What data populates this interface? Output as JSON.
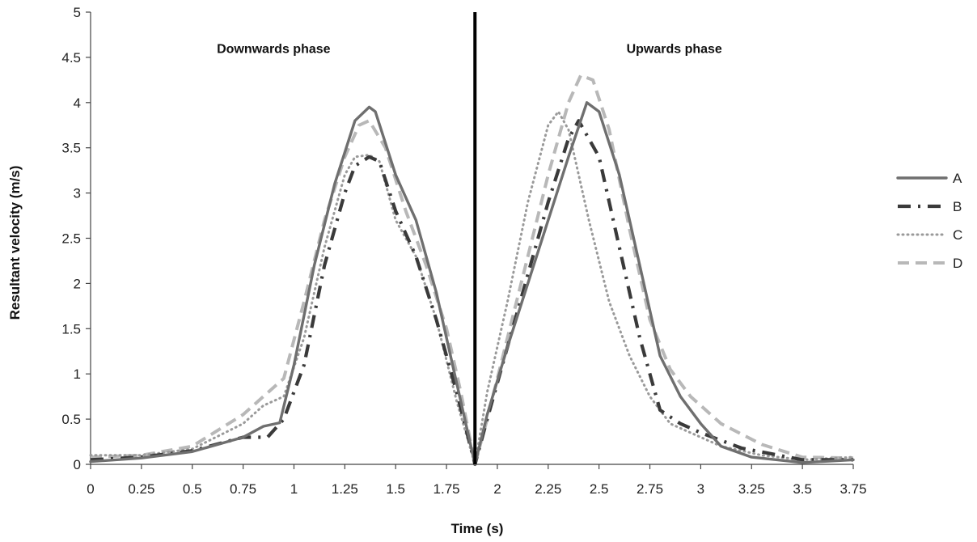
{
  "chart_data": {
    "type": "line",
    "xlabel": "Time (s)",
    "ylabel": "Resultant velocity (m/s)",
    "xlim": [
      0,
      3.75
    ],
    "ylim": [
      0,
      5
    ],
    "x_ticks": [
      "0",
      "0.25",
      "0.5",
      "0.75",
      "1",
      "1.25",
      "1.5",
      "1.75",
      "2",
      "2.25",
      "2.5",
      "2.75",
      "3",
      "3.25",
      "3.5",
      "3.75"
    ],
    "y_ticks": [
      "0",
      "0.5",
      "1",
      "1.5",
      "2",
      "2.5",
      "3",
      "3.5",
      "4",
      "4.5",
      "5"
    ],
    "grid": false,
    "legend_position": "right",
    "annotations": [
      {
        "text": "Downwards phase",
        "x": 0.9,
        "y": 4.6
      },
      {
        "text": "Upwards phase",
        "x": 2.87,
        "y": 4.6
      }
    ],
    "divider_x": 1.89,
    "series": [
      {
        "name": "A",
        "style": "solid",
        "color": "#6f6f6f",
        "x": [
          0,
          0.25,
          0.5,
          0.75,
          0.85,
          0.93,
          1.0,
          1.1,
          1.2,
          1.3,
          1.37,
          1.4,
          1.5,
          1.6,
          1.7,
          1.8,
          1.89,
          1.95,
          2.05,
          2.15,
          2.25,
          2.35,
          2.44,
          2.5,
          2.6,
          2.7,
          2.8,
          2.9,
          3.0,
          3.1,
          3.25,
          3.5,
          3.75
        ],
        "y": [
          0.03,
          0.07,
          0.14,
          0.3,
          0.42,
          0.46,
          1.1,
          2.2,
          3.1,
          3.8,
          3.95,
          3.9,
          3.2,
          2.7,
          1.9,
          0.9,
          0.0,
          0.55,
          1.3,
          2.0,
          2.7,
          3.4,
          4.0,
          3.9,
          3.2,
          2.2,
          1.2,
          0.75,
          0.45,
          0.2,
          0.08,
          0.02,
          0.05
        ]
      },
      {
        "name": "B",
        "style": "dash-dot",
        "color": "#3a3a3a",
        "x": [
          0,
          0.25,
          0.5,
          0.75,
          0.87,
          0.95,
          1.05,
          1.15,
          1.25,
          1.3,
          1.37,
          1.42,
          1.5,
          1.6,
          1.7,
          1.8,
          1.89,
          1.95,
          2.05,
          2.15,
          2.25,
          2.35,
          2.4,
          2.5,
          2.6,
          2.7,
          2.8,
          2.9,
          3.0,
          3.2,
          3.5,
          3.75
        ],
        "y": [
          0.05,
          0.08,
          0.15,
          0.3,
          0.3,
          0.5,
          1.1,
          2.2,
          3.0,
          3.3,
          3.4,
          3.35,
          2.8,
          2.3,
          1.6,
          0.8,
          0.0,
          0.5,
          1.3,
          2.1,
          2.9,
          3.6,
          3.8,
          3.4,
          2.4,
          1.4,
          0.6,
          0.45,
          0.35,
          0.18,
          0.05,
          0.05
        ]
      },
      {
        "name": "C",
        "style": "dotted",
        "color": "#9a9a9a",
        "x": [
          0,
          0.25,
          0.5,
          0.75,
          0.85,
          0.95,
          1.05,
          1.15,
          1.25,
          1.3,
          1.37,
          1.42,
          1.5,
          1.6,
          1.7,
          1.8,
          1.89,
          1.95,
          2.05,
          2.15,
          2.25,
          2.3,
          2.35,
          2.45,
          2.55,
          2.65,
          2.75,
          2.85,
          2.95,
          3.1,
          3.3,
          3.5,
          3.75
        ],
        "y": [
          0.1,
          0.1,
          0.17,
          0.45,
          0.65,
          0.75,
          1.4,
          2.4,
          3.2,
          3.4,
          3.42,
          3.35,
          2.7,
          2.3,
          1.6,
          0.7,
          0.0,
          0.8,
          1.8,
          2.9,
          3.75,
          3.9,
          3.7,
          2.7,
          1.8,
          1.2,
          0.75,
          0.45,
          0.35,
          0.2,
          0.1,
          0.05,
          0.08
        ]
      },
      {
        "name": "D",
        "style": "dashed",
        "color": "#b8b8b8",
        "x": [
          0,
          0.25,
          0.5,
          0.75,
          0.85,
          0.95,
          1.05,
          1.15,
          1.25,
          1.32,
          1.37,
          1.45,
          1.55,
          1.65,
          1.75,
          1.82,
          1.89,
          1.95,
          2.05,
          2.15,
          2.25,
          2.35,
          2.41,
          2.47,
          2.55,
          2.65,
          2.75,
          2.85,
          2.95,
          3.1,
          3.3,
          3.5,
          3.75
        ],
        "y": [
          0.08,
          0.1,
          0.2,
          0.55,
          0.75,
          0.95,
          1.8,
          2.7,
          3.4,
          3.75,
          3.8,
          3.5,
          2.8,
          2.2,
          1.5,
          0.8,
          0.0,
          0.5,
          1.4,
          2.3,
          3.2,
          4.0,
          4.3,
          4.25,
          3.7,
          2.6,
          1.6,
          1.05,
          0.75,
          0.45,
          0.22,
          0.08,
          0.07
        ]
      }
    ]
  }
}
